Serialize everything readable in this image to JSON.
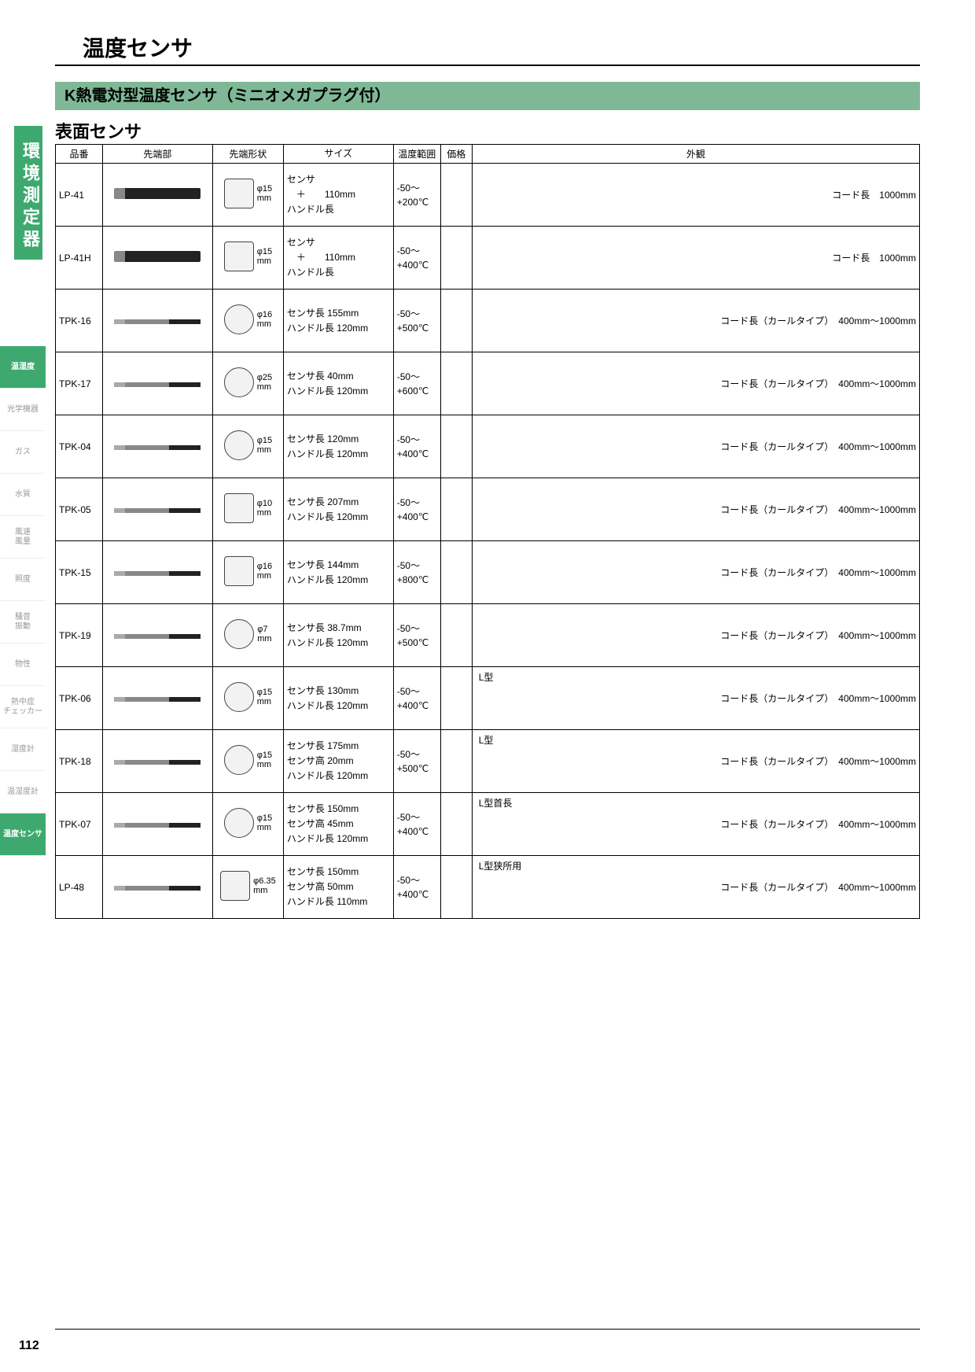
{
  "page_number": "112",
  "title": "温度センサ",
  "section_title": "K熱電対型温度センサ（ミニオメガプラグ付）",
  "subsection_title": "表面センサ",
  "side_label": "環境測定器",
  "colors": {
    "accent_green": "#3ea96f",
    "header_green": "#7fb896"
  },
  "side_tabs": [
    {
      "label": "温湿度",
      "active": true
    },
    {
      "label": "光学機器",
      "active": false
    },
    {
      "label": "ガス",
      "active": false
    },
    {
      "label": "水質",
      "active": false
    },
    {
      "label": "風速\n風量",
      "active": false
    },
    {
      "label": "照度",
      "active": false
    },
    {
      "label": "騒音\n振動",
      "active": false
    },
    {
      "label": "物性",
      "active": false
    },
    {
      "label": "熱中症\nチェッカー",
      "active": false
    },
    {
      "label": "湿度計",
      "active": false
    },
    {
      "label": "温湿度計",
      "active": false
    },
    {
      "label": "温度センサ",
      "active": true
    }
  ],
  "table": {
    "columns": [
      "品番",
      "先端部",
      "先端形状",
      "サイズ",
      "温度範囲",
      "価格",
      "外観"
    ],
    "rows": [
      {
        "part": "LP-41",
        "shape_dim": "φ15\nmm",
        "shape_square": true,
        "size": "センサ\n　＋　　110mm\nハンドル長",
        "temp": "-50～\n+200℃",
        "app_type": "",
        "app_cord": "コード長　1000mm"
      },
      {
        "part": "LP-41H",
        "shape_dim": "φ15\nmm",
        "shape_square": true,
        "size": "センサ\n　＋　　110mm\nハンドル長",
        "temp": "-50～\n+400℃",
        "app_type": "",
        "app_cord": "コード長　1000mm"
      },
      {
        "part": "TPK-16",
        "shape_dim": "φ16\nmm",
        "shape_square": false,
        "size": "センサ長 155mm\nハンドル長 120mm",
        "temp": "-50～\n+500℃",
        "app_type": "",
        "app_cord": "コード長（カールタイプ）　400mm～1000mm"
      },
      {
        "part": "TPK-17",
        "shape_dim": "φ25\nmm",
        "shape_square": false,
        "size": "センサ長 40mm\nハンドル長 120mm",
        "temp": "-50～\n+600℃",
        "app_type": "",
        "app_cord": "コード長（カールタイプ）　400mm～1000mm"
      },
      {
        "part": "TPK-04",
        "shape_dim": "φ15\nmm",
        "shape_square": false,
        "size": "センサ長 120mm\nハンドル長 120mm",
        "temp": "-50～\n+400℃",
        "app_type": "",
        "app_cord": "コード長（カールタイプ）　400mm～1000mm"
      },
      {
        "part": "TPK-05",
        "shape_dim": "φ10\nmm",
        "shape_square": true,
        "size": "センサ長 207mm\nハンドル長 120mm",
        "temp": "-50～\n+400℃",
        "app_type": "",
        "app_cord": "コード長（カールタイプ）　400mm～1000mm"
      },
      {
        "part": "TPK-15",
        "shape_dim": "φ16\nmm",
        "shape_square": true,
        "size": "センサ長 144mm\nハンドル長 120mm",
        "temp": "-50～\n+800℃",
        "app_type": "",
        "app_cord": "コード長（カールタイプ）　400mm～1000mm"
      },
      {
        "part": "TPK-19",
        "shape_dim": "φ7\nmm",
        "shape_square": false,
        "size": "センサ長 38.7mm\nハンドル長 120mm",
        "temp": "-50～\n+500℃",
        "app_type": "",
        "app_cord": "コード長（カールタイプ）　400mm～1000mm"
      },
      {
        "part": "TPK-06",
        "shape_dim": "φ15\nmm",
        "shape_square": false,
        "size": "センサ長 130mm\nハンドル長 120mm",
        "temp": "-50～\n+400℃",
        "app_type": "L型",
        "app_cord": "コード長（カールタイプ）　400mm～1000mm"
      },
      {
        "part": "TPK-18",
        "shape_dim": "φ15\nmm",
        "shape_square": false,
        "size": "センサ長 175mm\nセンサ高 20mm\nハンドル長 120mm",
        "temp": "-50～\n+500℃",
        "app_type": "L型",
        "app_cord": "コード長（カールタイプ）　400mm～1000mm"
      },
      {
        "part": "TPK-07",
        "shape_dim": "φ15\nmm",
        "shape_square": false,
        "size": "センサ長 150mm\nセンサ高 45mm\nハンドル長 120mm",
        "temp": "-50～\n+400℃",
        "app_type": "L型首長",
        "app_cord": "コード長（カールタイプ）　400mm～1000mm"
      },
      {
        "part": "LP-48",
        "shape_dim": "φ6.35\nmm",
        "shape_square": true,
        "size": "センサ長 150mm\nセンサ高 50mm\nハンドル長 110mm",
        "temp": "-50～\n+400℃",
        "app_type": "L型狭所用",
        "app_cord": "コード長（カールタイプ）　400mm～1000mm"
      }
    ]
  }
}
